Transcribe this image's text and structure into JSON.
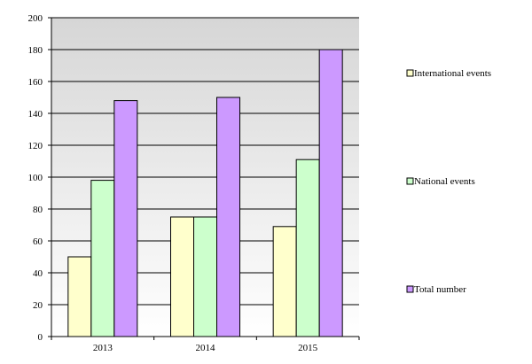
{
  "chart_data": {
    "type": "bar",
    "categories": [
      "2013",
      "2014",
      "2015"
    ],
    "series": [
      {
        "name": "International events",
        "values": [
          50,
          75,
          69
        ],
        "color": "#FFFFCC"
      },
      {
        "name": "National events",
        "values": [
          98,
          75,
          111
        ],
        "color": "#CCFFCC"
      },
      {
        "name": "Total number",
        "values": [
          148,
          150,
          180
        ],
        "color": "#CC99FF"
      }
    ],
    "title": "",
    "xlabel": "",
    "ylabel": "",
    "ylim": [
      0,
      200
    ],
    "y_ticks": [
      0,
      20,
      40,
      60,
      80,
      100,
      120,
      140,
      160,
      180,
      200
    ],
    "grid": true,
    "legend_position": "right",
    "plot_background": "gradient gray-to-white",
    "bar_outline_color": "#000000"
  }
}
